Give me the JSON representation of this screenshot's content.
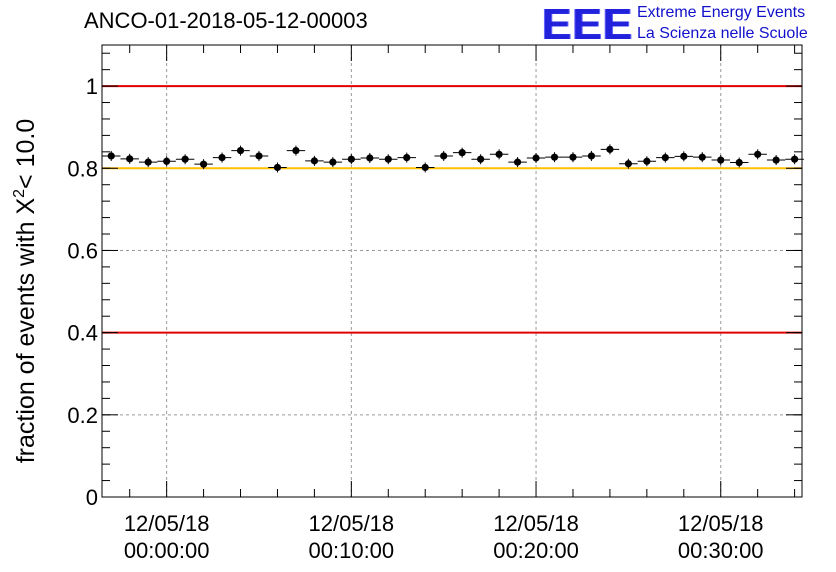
{
  "chart_data": {
    "type": "scatter",
    "title": "ANCO-01-2018-05-12-00003",
    "ylabel": "fraction of events with",
    "ylabel_symbol": "X",
    "ylabel_exp": "2",
    "ylabel_tail": "< 10.0",
    "xlabel": "",
    "ylim": [
      0,
      1.1
    ],
    "xlim_minutes": [
      -3.5,
      34.4
    ],
    "y_ticks": [
      0,
      0.2,
      0.4,
      0.6,
      0.8,
      1
    ],
    "y_tick_labels": [
      "0",
      "0.2",
      "0.4",
      "0.6",
      "0.8",
      "1"
    ],
    "x_ticks_minutes": [
      0,
      10,
      20,
      30
    ],
    "x_tick_dates": [
      "12/05/18",
      "12/05/18",
      "12/05/18",
      "12/05/18"
    ],
    "x_tick_times": [
      "00:00:00",
      "00:10:00",
      "00:20:00",
      "00:30:00"
    ],
    "grid": true,
    "reference_lines": [
      {
        "y": 1.0,
        "color": "#e00000"
      },
      {
        "y": 0.8,
        "color": "#ffc000"
      },
      {
        "y": 0.4,
        "color": "#e00000"
      }
    ],
    "series": [
      {
        "name": "fraction",
        "bin_width_minutes": 1,
        "x_minutes": [
          -3,
          -2,
          -1,
          0,
          1,
          2,
          3,
          4,
          5,
          6,
          7,
          8,
          9,
          10,
          11,
          12,
          13,
          14,
          15,
          16,
          17,
          18,
          19,
          20,
          21,
          22,
          23,
          24,
          25,
          26,
          27,
          28,
          29,
          30,
          31,
          32,
          33,
          34
        ],
        "values": [
          0.83,
          0.823,
          0.815,
          0.817,
          0.822,
          0.81,
          0.826,
          0.843,
          0.83,
          0.802,
          0.843,
          0.818,
          0.815,
          0.822,
          0.825,
          0.822,
          0.826,
          0.802,
          0.83,
          0.838,
          0.822,
          0.834,
          0.815,
          0.825,
          0.827,
          0.827,
          0.83,
          0.846,
          0.811,
          0.817,
          0.826,
          0.829,
          0.827,
          0.82,
          0.814,
          0.834,
          0.82,
          0.822
        ]
      }
    ]
  },
  "logo": {
    "mark": "EEE",
    "line1": "Extreme Energy Events",
    "line2": "La Scienza nelle Scuole"
  }
}
